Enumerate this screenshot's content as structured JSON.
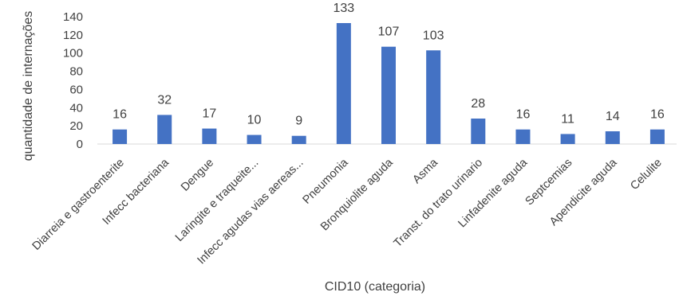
{
  "chart_data": {
    "type": "bar",
    "title": "",
    "xlabel": "CID10 (categoria)",
    "ylabel": "quantidade de internações",
    "ylim": [
      0,
      140
    ],
    "yticks": [
      0,
      20,
      40,
      60,
      80,
      100,
      120,
      140
    ],
    "grid": false,
    "legend": "none",
    "bar_color": "#4472C4",
    "categories": [
      "Diarreia e gastroenterite",
      "Infecc bacteriana",
      "Dengue",
      "Laringite e traqueite...",
      "Infecc agudas vias aereas...",
      "Pneumonia",
      "Bronquiolite aguda",
      "Asma",
      "Transt. do trato urinario",
      "Linfadenite aguda",
      "Septcemias",
      "Apendicite aguda",
      "Celulite"
    ],
    "values": [
      16,
      32,
      17,
      10,
      9,
      133,
      107,
      103,
      28,
      16,
      11,
      14,
      16
    ],
    "data_labels": [
      "16",
      "32",
      "17",
      "10",
      "9",
      "133",
      "107",
      "103",
      "28",
      "16",
      "11",
      "14",
      "16"
    ]
  }
}
